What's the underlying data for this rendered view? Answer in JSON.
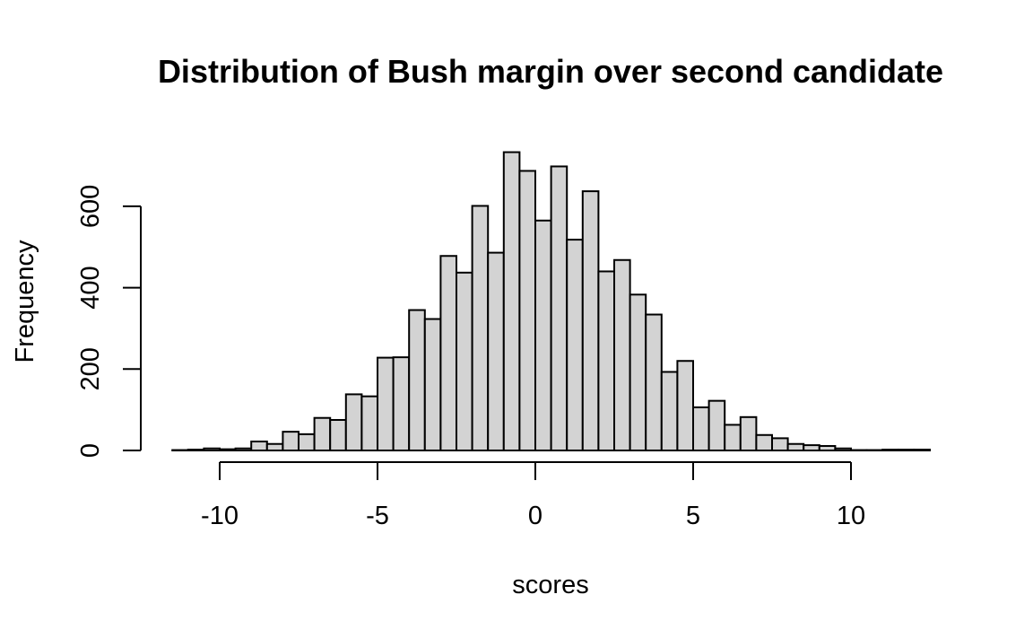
{
  "chart_data": {
    "type": "bar",
    "title": "Distribution of Bush margin over second candidate",
    "xlabel": "scores",
    "ylabel": "Frequency",
    "bin_width": 0.5,
    "bin_start": -11.5,
    "xlim": [
      -11.5,
      12.5
    ],
    "ylim": [
      0,
      740
    ],
    "x_ticks": [
      -10,
      -5,
      0,
      5,
      10
    ],
    "y_ticks": [
      0,
      200,
      400,
      600
    ],
    "values": [
      1,
      2,
      5,
      3,
      5,
      22,
      16,
      46,
      40,
      80,
      75,
      138,
      133,
      228,
      229,
      345,
      323,
      478,
      437,
      601,
      486,
      733,
      687,
      565,
      698,
      518,
      637,
      440,
      468,
      383,
      334,
      193,
      220,
      106,
      122,
      63,
      82,
      38,
      30,
      16,
      13,
      11,
      5,
      1,
      1,
      2,
      2,
      2
    ]
  }
}
